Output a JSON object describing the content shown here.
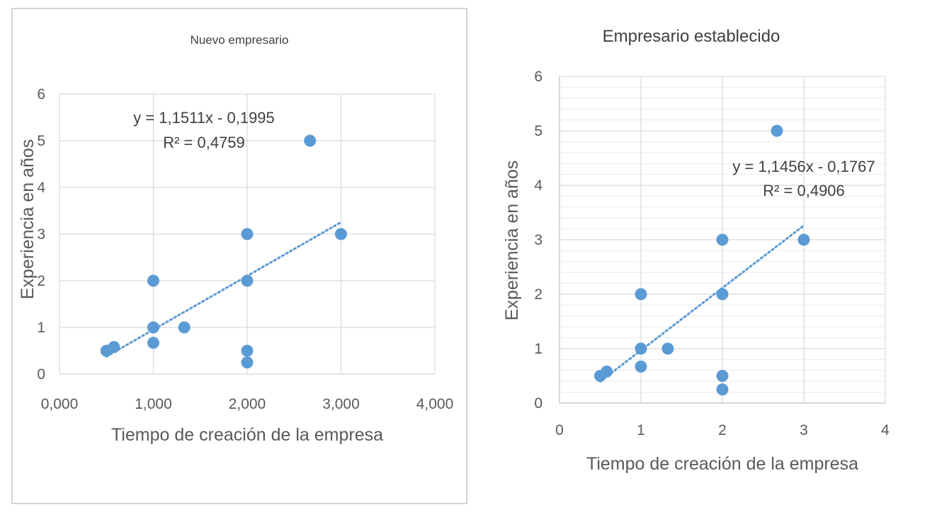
{
  "chart_data": [
    {
      "type": "scatter",
      "title": "Nuevo empresario",
      "xlabel": "Tiempo de creación de la empresa",
      "ylabel": "Experiencia en años",
      "xlim": [
        0,
        4
      ],
      "ylim": [
        0,
        6
      ],
      "x_ticks": [
        "0,000",
        "1,000",
        "2,000",
        "3,000",
        "4,000"
      ],
      "y_ticks": [
        "0",
        "1",
        "2",
        "3",
        "4",
        "5",
        "6"
      ],
      "grid": true,
      "points": [
        {
          "x": 0.5,
          "y": 0.5
        },
        {
          "x": 0.58,
          "y": 0.58
        },
        {
          "x": 1.0,
          "y": 2.0
        },
        {
          "x": 1.0,
          "y": 1.0
        },
        {
          "x": 1.0,
          "y": 0.67
        },
        {
          "x": 1.33,
          "y": 1.0
        },
        {
          "x": 2.0,
          "y": 3.0
        },
        {
          "x": 2.0,
          "y": 2.0
        },
        {
          "x": 2.0,
          "y": 0.5
        },
        {
          "x": 2.0,
          "y": 0.25
        },
        {
          "x": 2.67,
          "y": 5.0
        },
        {
          "x": 3.0,
          "y": 3.0
        }
      ],
      "trendline": {
        "slope": 1.1511,
        "intercept": -0.1995,
        "x_range": [
          0.5,
          3.0
        ]
      },
      "equation": "y = 1,1511x - 0,1995",
      "r_squared": "R² = 0,4759"
    },
    {
      "type": "scatter",
      "title": "Empresario establecido",
      "xlabel": "Tiempo de creación de la empresa",
      "ylabel": "Experiencia en años",
      "xlim": [
        0,
        4
      ],
      "ylim": [
        0,
        6
      ],
      "x_ticks": [
        "0",
        "1",
        "2",
        "3",
        "4"
      ],
      "y_ticks": [
        "0",
        "1",
        "2",
        "3",
        "4",
        "5",
        "6"
      ],
      "grid": true,
      "minor_grid": true,
      "points": [
        {
          "x": 0.5,
          "y": 0.5
        },
        {
          "x": 0.58,
          "y": 0.58
        },
        {
          "x": 1.0,
          "y": 2.0
        },
        {
          "x": 1.0,
          "y": 1.0
        },
        {
          "x": 1.0,
          "y": 0.67
        },
        {
          "x": 1.33,
          "y": 1.0
        },
        {
          "x": 2.0,
          "y": 3.0
        },
        {
          "x": 2.0,
          "y": 2.0
        },
        {
          "x": 2.0,
          "y": 0.5
        },
        {
          "x": 2.0,
          "y": 0.25
        },
        {
          "x": 2.67,
          "y": 5.0
        },
        {
          "x": 3.0,
          "y": 3.0
        }
      ],
      "trendline": {
        "slope": 1.1456,
        "intercept": -0.1767,
        "x_range": [
          0.5,
          3.0
        ]
      },
      "equation": "y = 1,1456x - 0,1767",
      "r_squared": "R² = 0,4906"
    }
  ],
  "colors": {
    "marker": "#5b9bd5",
    "trend": "#5b9bd5",
    "grid": "#d9d9d9",
    "axis": "#bfbfbf",
    "text": "#595959"
  }
}
